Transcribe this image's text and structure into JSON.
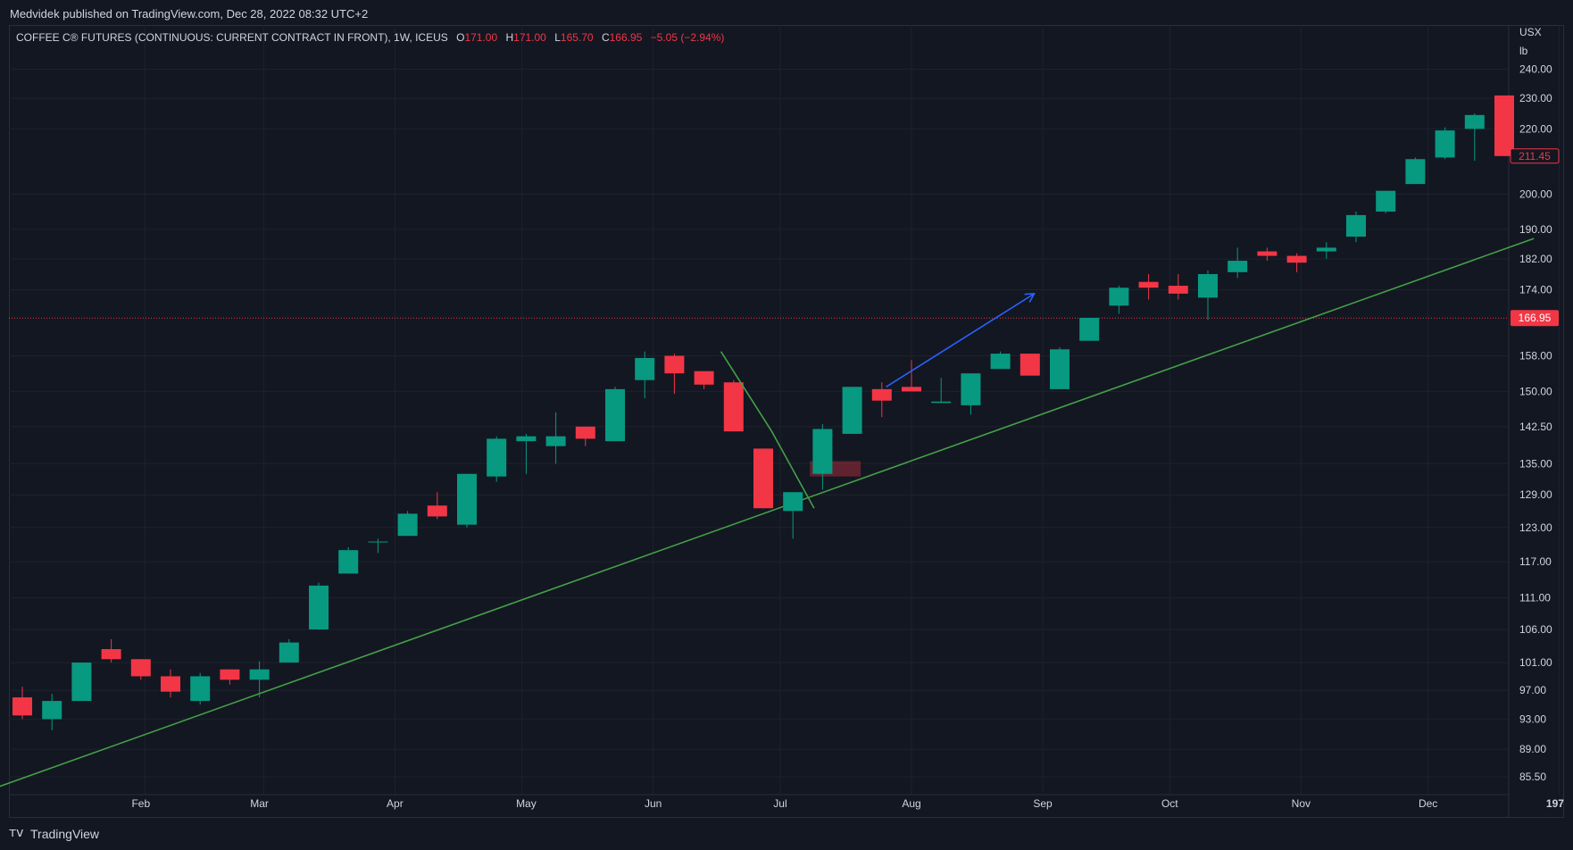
{
  "header": {
    "published_by": "Medvidek published on TradingView.com, Dec 28, 2022 08:32 UTC+2"
  },
  "legend": {
    "symbol": "COFFEE C® FUTURES (CONTINUOUS: CURRENT CONTRACT IN FRONT), 1W, ICEUS",
    "o_label": "O",
    "o_value": "171.00",
    "h_label": "H",
    "h_value": "171.00",
    "l_label": "L",
    "l_value": "165.70",
    "c_label": "C",
    "c_value": "166.95",
    "change": "−5.05 (−2.94%)"
  },
  "footer": {
    "brand": "TradingView",
    "logo_icon": "tradingview-logo-icon"
  },
  "colors": {
    "background": "#131722",
    "grid": "#1e222d",
    "up": "#089981",
    "down": "#f23645",
    "trendline": "#43a047",
    "arrow": "#2962ff",
    "price_line": "#f23645",
    "text": "#d1d4dc"
  },
  "chart_data": {
    "type": "candlestick",
    "scale": "log",
    "currency_unit": [
      "USX",
      "lb"
    ],
    "y_ticks": [
      "240.00",
      "230.00",
      "220.00",
      "200.00",
      "190.00",
      "182.00",
      "174.00",
      "158.00",
      "150.00",
      "142.50",
      "135.00",
      "129.00",
      "123.00",
      "117.00",
      "111.00",
      "106.00",
      "101.00",
      "97.00",
      "93.00",
      "89.00",
      "85.50"
    ],
    "x_ticks": [
      "Feb",
      "Mar",
      "Apr",
      "May",
      "Jun",
      "Jul",
      "Aug",
      "Sep",
      "Oct",
      "Nov",
      "Dec",
      "197"
    ],
    "ylim": [
      83.3,
      256.0
    ],
    "price_labels": [
      {
        "text": "211.45",
        "value": 211.45,
        "style": "outline"
      },
      {
        "text": "166.95",
        "value": 166.95,
        "style": "filled"
      }
    ],
    "current_price_line": 166.95,
    "series": [
      {
        "date": "2022-01-03",
        "o": 96,
        "h": 97.5,
        "l": 93,
        "c": 93.5
      },
      {
        "date": "2022-01-10",
        "o": 93,
        "h": 96.5,
        "l": 91.5,
        "c": 95.5
      },
      {
        "date": "2022-01-17",
        "o": 95.5,
        "h": 101,
        "l": 95.5,
        "c": 101
      },
      {
        "date": "2022-01-24",
        "o": 103,
        "h": 104.5,
        "l": 101,
        "c": 101.5
      },
      {
        "date": "2022-01-31",
        "o": 101.5,
        "h": 101.5,
        "l": 98.5,
        "c": 99
      },
      {
        "date": "2022-02-07",
        "o": 99,
        "h": 100,
        "l": 96,
        "c": 96.8
      },
      {
        "date": "2022-02-14",
        "o": 95.5,
        "h": 99.5,
        "l": 95,
        "c": 99
      },
      {
        "date": "2022-02-21",
        "o": 100,
        "h": 100,
        "l": 97.8,
        "c": 98.5
      },
      {
        "date": "2022-02-28",
        "o": 98.5,
        "h": 101.2,
        "l": 96,
        "c": 100
      },
      {
        "date": "2022-03-07",
        "o": 101,
        "h": 104.5,
        "l": 101,
        "c": 104
      },
      {
        "date": "2022-03-14",
        "o": 106,
        "h": 113.5,
        "l": 106,
        "c": 113
      },
      {
        "date": "2022-03-21",
        "o": 115,
        "h": 119.5,
        "l": 115,
        "c": 119
      },
      {
        "date": "2022-03-28",
        "o": 120.5,
        "h": 121,
        "l": 118.5,
        "c": 120.5
      },
      {
        "date": "2022-04-04",
        "o": 121.5,
        "h": 126,
        "l": 121.5,
        "c": 125.5
      },
      {
        "date": "2022-04-11",
        "o": 127,
        "h": 129.5,
        "l": 124.5,
        "c": 125
      },
      {
        "date": "2022-04-18",
        "o": 123.5,
        "h": 133,
        "l": 123,
        "c": 133
      },
      {
        "date": "2022-04-25",
        "o": 132.5,
        "h": 140.5,
        "l": 131.5,
        "c": 140
      },
      {
        "date": "2022-05-02",
        "o": 139.5,
        "h": 141,
        "l": 133,
        "c": 140.5
      },
      {
        "date": "2022-05-09",
        "o": 138.5,
        "h": 145.5,
        "l": 135,
        "c": 140.5
      },
      {
        "date": "2022-05-16",
        "o": 142.5,
        "h": 142.5,
        "l": 138.5,
        "c": 140
      },
      {
        "date": "2022-05-23",
        "o": 139.5,
        "h": 151,
        "l": 139.5,
        "c": 150.5
      },
      {
        "date": "2022-05-30",
        "o": 152.5,
        "h": 159,
        "l": 148.5,
        "c": 157.5
      },
      {
        "date": "2022-06-06",
        "o": 158,
        "h": 158.5,
        "l": 149.5,
        "c": 154
      },
      {
        "date": "2022-06-13",
        "o": 154.5,
        "h": 154.5,
        "l": 150.5,
        "c": 151.5
      },
      {
        "date": "2022-06-20",
        "o": 152,
        "h": 152.5,
        "l": 141.5,
        "c": 141.5
      },
      {
        "date": "2022-06-27",
        "o": 138,
        "h": 138,
        "l": 126.5,
        "c": 126.5
      },
      {
        "date": "2022-07-04",
        "o": 126,
        "h": 129.5,
        "l": 121,
        "c": 129.5
      },
      {
        "date": "2022-07-11",
        "o": 133,
        "h": 143,
        "l": 130,
        "c": 142
      },
      {
        "date": "2022-07-18",
        "o": 141,
        "h": 151,
        "l": 141,
        "c": 151
      },
      {
        "date": "2022-07-25",
        "o": 150.5,
        "h": 152,
        "l": 144.5,
        "c": 148
      },
      {
        "date": "2022-08-01",
        "o": 151,
        "h": 157,
        "l": 150,
        "c": 150
      },
      {
        "date": "2022-08-08",
        "o": 147.5,
        "h": 153,
        "l": 147.5,
        "c": 147.8
      },
      {
        "date": "2022-08-15",
        "o": 147,
        "h": 154,
        "l": 145,
        "c": 154
      },
      {
        "date": "2022-08-22",
        "o": 155,
        "h": 159,
        "l": 155,
        "c": 158.5
      },
      {
        "date": "2022-08-29",
        "o": 158.5,
        "h": 158.5,
        "l": 153.5,
        "c": 153.5
      },
      {
        "date": "2022-09-05",
        "o": 150.5,
        "h": 160,
        "l": 150.5,
        "c": 159.5
      },
      {
        "date": "2022-09-12",
        "o": 161.5,
        "h": 167,
        "l": 161.5,
        "c": 167
      },
      {
        "date": "2022-09-19",
        "o": 170,
        "h": 175,
        "l": 168,
        "c": 174.5
      },
      {
        "date": "2022-09-26",
        "o": 176,
        "h": 178,
        "l": 171.5,
        "c": 174.5
      },
      {
        "date": "2022-10-03",
        "o": 175,
        "h": 178,
        "l": 171.5,
        "c": 173
      },
      {
        "date": "2022-10-10",
        "o": 172,
        "h": 179,
        "l": 166.5,
        "c": 178
      },
      {
        "date": "2022-10-17",
        "o": 178.5,
        "h": 185,
        "l": 177,
        "c": 181.5
      },
      {
        "date": "2022-10-24",
        "o": 184,
        "h": 185,
        "l": 181.5,
        "c": 182.8
      },
      {
        "date": "2022-10-31",
        "o": 182.8,
        "h": 183.5,
        "l": 178.5,
        "c": 181
      },
      {
        "date": "2022-11-07",
        "o": 184,
        "h": 186.5,
        "l": 182,
        "c": 185
      },
      {
        "date": "2022-11-14",
        "o": 188,
        "h": 195,
        "l": 186.5,
        "c": 194
      },
      {
        "date": "2022-11-21",
        "o": 195,
        "h": 201,
        "l": 194.5,
        "c": 201
      },
      {
        "date": "2022-11-28",
        "o": 203,
        "h": 211,
        "l": 203,
        "c": 210.5
      },
      {
        "date": "2022-12-05",
        "o": 211,
        "h": 220.5,
        "l": 210.5,
        "c": 219.5
      },
      {
        "date": "2022-12-12",
        "o": 220,
        "h": 225,
        "l": 210,
        "c": 224.5
      },
      {
        "date": "2022-12-19",
        "o": 231,
        "h": 231,
        "l": 211.45,
        "c": 211.45
      }
    ],
    "annotations": [
      {
        "type": "trendline",
        "from": {
          "date": "2021-12-27",
          "price": 84
        },
        "to": {
          "date": "2022-12-26",
          "price": 187.5
        }
      },
      {
        "type": "polyline",
        "points": [
          {
            "date": "2022-06-17",
            "price": 159
          },
          {
            "date": "2022-06-29",
            "price": 141.5
          },
          {
            "date": "2022-07-09",
            "price": 126.5
          }
        ]
      },
      {
        "type": "arrow",
        "from": {
          "date": "2022-07-26",
          "price": 151
        },
        "to": {
          "date": "2022-08-30",
          "price": 173
        }
      },
      {
        "type": "box",
        "from": {
          "date": "2022-07-08",
          "price": 135.5
        },
        "to": {
          "date": "2022-07-20",
          "price": 132.5
        }
      }
    ]
  }
}
